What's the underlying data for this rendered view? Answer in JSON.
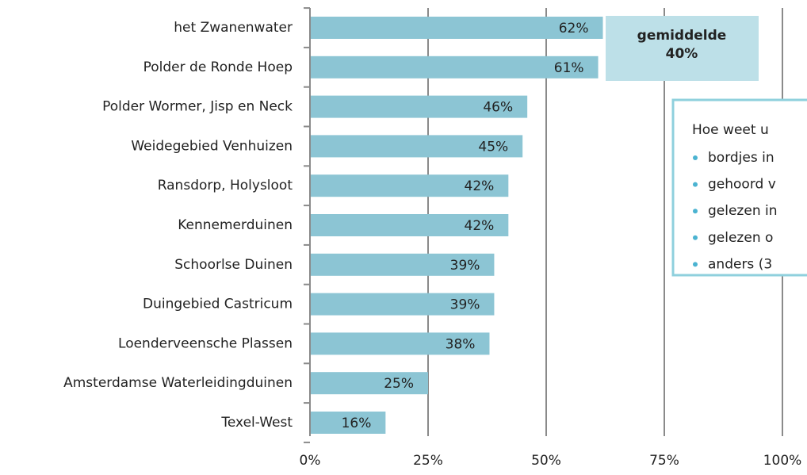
{
  "chart_data": {
    "type": "barh",
    "categories": [
      "het Zwanenwater",
      "Polder de Ronde Hoep",
      "Polder Wormer, Jisp en Neck",
      "Weidegebied Venhuizen ",
      "Ransdorp, Holysloot",
      "Kennemerduinen",
      "Schoorlse Duinen",
      "Duingebied Castricum",
      "Loenderveensche Plassen",
      "Amsterdamse Waterleidingduinen",
      "Texel-West"
    ],
    "values": [
      62,
      61,
      46,
      45,
      42,
      42,
      39,
      39,
      38,
      25,
      16
    ],
    "value_labels": [
      "62%",
      "61%",
      "46%",
      "45%",
      "42%",
      "42%",
      "39%",
      "39%",
      "38%",
      "25%",
      "16%"
    ],
    "color": "#8cc5d4",
    "xlim": [
      0,
      100
    ],
    "xticks": [
      {
        "value": 0,
        "label": "0%"
      },
      {
        "value": 25,
        "label": "25%"
      },
      {
        "value": 50,
        "label": "50%"
      },
      {
        "value": 75,
        "label": "75%"
      },
      {
        "value": 100,
        "label": "100%"
      }
    ],
    "grid": true,
    "average_box": {
      "label": "gemiddelde",
      "value_label": "40%"
    },
    "info_box": {
      "title": "Hoe weet u",
      "items": [
        "bordjes in",
        "gehoord v",
        "gelezen in",
        "gelezen o",
        "anders (3"
      ]
    }
  }
}
